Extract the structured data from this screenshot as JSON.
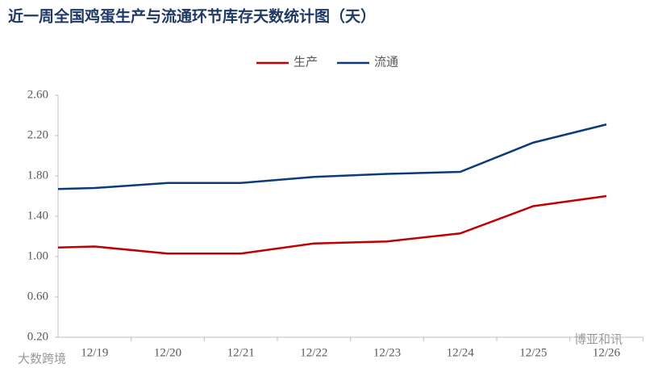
{
  "chart_data": {
    "type": "line",
    "title": "近一周全国鸡蛋生产与流通环节库存天数统计图（天）",
    "categories": [
      null,
      "12/19",
      "12/20",
      "12/21",
      "12/22",
      "12/23",
      "12/24",
      "12/25",
      "12/26"
    ],
    "series": [
      {
        "name": "生产",
        "color": "#c00000",
        "values": [
          1.09,
          1.1,
          1.03,
          1.03,
          1.13,
          1.15,
          1.23,
          1.5,
          1.6
        ]
      },
      {
        "name": "流通",
        "color": "#0b3b7a",
        "values": [
          1.67,
          1.68,
          1.73,
          1.73,
          1.79,
          1.82,
          1.84,
          2.13,
          2.31
        ]
      }
    ],
    "ylim": [
      0.2,
      2.6
    ],
    "yticks": [
      {
        "value": 0.2,
        "label": "0.20"
      },
      {
        "value": 0.6,
        "label": "0.60"
      },
      {
        "value": 1.0,
        "label": "1.00"
      },
      {
        "value": 1.4,
        "label": "1.40"
      },
      {
        "value": 1.8,
        "label": "1.80"
      },
      {
        "value": 2.2,
        "label": "2.20"
      },
      {
        "value": 2.6,
        "label": "2.60"
      }
    ],
    "grid": false
  },
  "watermarks": [
    "大数跨境",
    "博亚和讯"
  ]
}
